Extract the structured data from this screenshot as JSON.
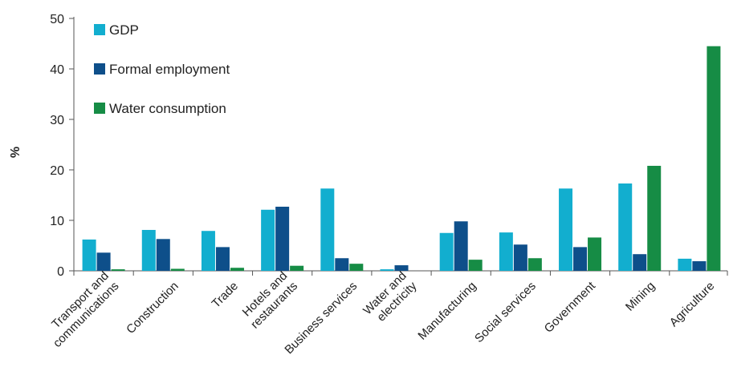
{
  "chart_data": {
    "type": "bar",
    "title": "",
    "xlabel": "",
    "ylabel": "%",
    "ylim": [
      0,
      50
    ],
    "yticks": [
      0,
      10,
      20,
      30,
      40,
      50
    ],
    "grid": false,
    "legend_position": "top-left",
    "categories": [
      [
        "Transport and",
        "communications"
      ],
      [
        "Construction"
      ],
      [
        "Trade"
      ],
      [
        "Hotels and",
        "restaurants"
      ],
      [
        "Business services"
      ],
      [
        "Water and",
        "electricity"
      ],
      [
        "Manufacturing"
      ],
      [
        "Social services"
      ],
      [
        "Government"
      ],
      [
        "Mining"
      ],
      [
        "Agriculture"
      ]
    ],
    "series": [
      {
        "name": "GDP",
        "color": "#12AECF",
        "values": [
          6.2,
          8.1,
          7.9,
          12.1,
          16.3,
          0.3,
          7.5,
          7.6,
          16.3,
          17.3,
          2.4
        ]
      },
      {
        "name": "Formal employment",
        "color": "#0E4F8A",
        "values": [
          3.6,
          6.3,
          4.7,
          12.7,
          2.5,
          1.1,
          9.8,
          5.2,
          4.7,
          3.3,
          1.9
        ]
      },
      {
        "name": "Water consumption",
        "color": "#168C45",
        "values": [
          0.3,
          0.4,
          0.6,
          1.0,
          1.4,
          0.0,
          2.2,
          2.5,
          6.6,
          20.8,
          44.5
        ]
      }
    ]
  }
}
